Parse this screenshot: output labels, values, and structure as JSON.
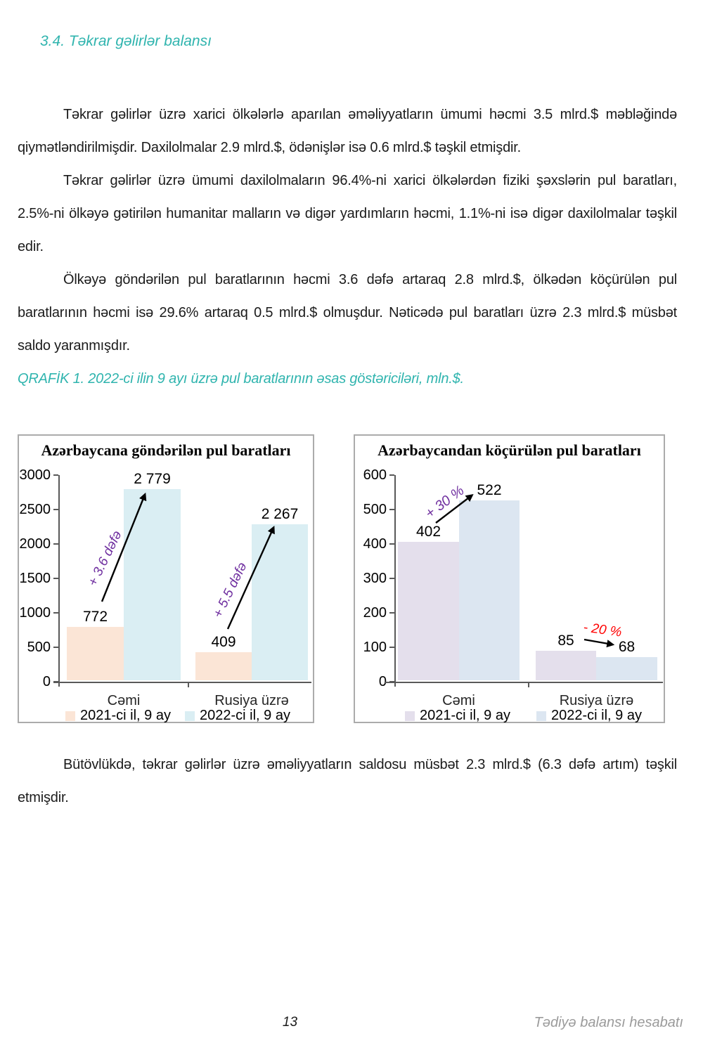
{
  "page": {
    "section_heading": "3.4. Təkrar gəlirlər balansı",
    "paragraphs": [
      "Təkrar gəlirlər üzrə xarici ölkələrlə aparılan əməliyyatların ümumi həcmi 3.5 mlrd.$ məbləğində qiymətləndirilmişdir. Daxilolmalar 2.9 mlrd.$, ödənişlər isə 0.6 mlrd.$ təşkil etmişdir.",
      "Təkrar gəlirlər üzrə ümumi daxilolmaların 96.4%-ni xarici ölkələrdən fiziki şəxslərin pul baratları, 2.5%-ni ölkəyə gətirilən humanitar malların və digər yardımların həcmi, 1.1%-ni isə digər daxilolmalar təşkil edir.",
      "Ölkəyə göndərilən pul baratlarının həcmi 3.6 dəfə artaraq 2.8 mlrd.$, ölkədən köçürülən pul baratlarının həcmi isə 29.6% artaraq 0.5 mlrd.$ olmuşdur. Nəticədə pul baratları üzrə 2.3 mlrd.$ müsbət saldo yaranmışdır."
    ],
    "figure_caption": "QRAFİK 1. 2022-ci ilin 9 ayı üzrə pul baratlarının əsas göstəriciləri, mln.$.",
    "closing_paragraph": "Bütövlükdə, təkrar gəlirlər üzrə əməliyyatların saldosu müsbət 2.3 mlrd.$ (6.3 dəfə artım) təşkil etmişdir.",
    "footer": {
      "page_number": "13",
      "report_title": "Tədiyə balansı hesabatı"
    }
  },
  "colors": {
    "accent_teal": "#2FB4AE",
    "annotation_purple": "#7030A0",
    "annotation_red": "#FF0000"
  },
  "chart_data": [
    {
      "type": "bar",
      "title": "Azərbaycana göndərilən pul baratları",
      "categories": [
        "Cəmi",
        "Rusiya üzrə"
      ],
      "series": [
        {
          "name": "2021-ci il, 9 ay",
          "color": "#FBE5D6",
          "values": [
            772,
            409
          ]
        },
        {
          "name": "2022-ci il, 9 ay",
          "color": "#DAEEF3",
          "values": [
            2779,
            2267
          ]
        }
      ],
      "value_labels": [
        "772",
        "2 779",
        "409",
        "2 267"
      ],
      "ylim": [
        0,
        3000
      ],
      "yticks_display": [
        "3000",
        "2500",
        "2000",
        "1500",
        "1000",
        "500",
        "0"
      ],
      "annotations": [
        {
          "text": "+ 3.6 dəfə",
          "color": "#7030A0"
        },
        {
          "text": "+ 5.5 dəfə",
          "color": "#7030A0"
        }
      ],
      "xlabel": "",
      "ylabel": "",
      "grid": false,
      "legend_position": "bottom"
    },
    {
      "type": "bar",
      "title": "Azərbaycandan köçürülən pul baratları",
      "categories": [
        "Cəmi",
        "Rusiya üzrə"
      ],
      "series": [
        {
          "name": "2021-ci il, 9 ay",
          "color": "#E4DFEC",
          "values": [
            402,
            85
          ]
        },
        {
          "name": "2022-ci il, 9 ay",
          "color": "#DCE6F1",
          "values": [
            522,
            68
          ]
        }
      ],
      "value_labels": [
        "402",
        "522",
        "85",
        "68"
      ],
      "ylim": [
        0,
        600
      ],
      "yticks_display": [
        "600",
        "500",
        "400",
        "300",
        "200",
        "100",
        "0"
      ],
      "annotations": [
        {
          "text": "+ 30 %",
          "color": "#7030A0"
        },
        {
          "text": "- 20 %",
          "color": "#FF0000"
        }
      ],
      "xlabel": "",
      "ylabel": "",
      "grid": false,
      "legend_position": "bottom"
    }
  ]
}
